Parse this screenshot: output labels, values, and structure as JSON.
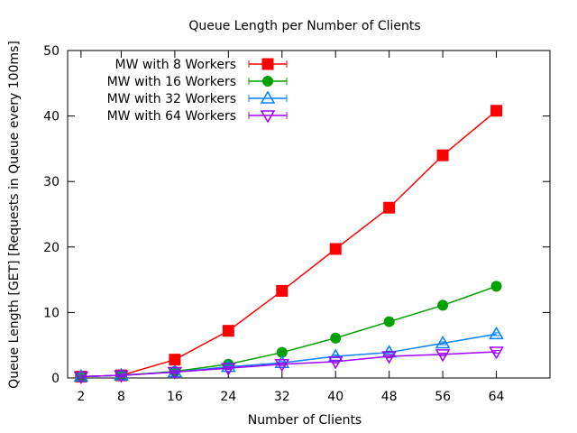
{
  "chart_data": {
    "type": "line",
    "title": "Queue Length per Number of Clients",
    "xlabel": "Number of Clients",
    "ylabel": "Queue Length [GET] [Requests in Queue every 100ms]",
    "x": [
      2,
      8,
      16,
      24,
      32,
      40,
      48,
      56,
      64
    ],
    "xticks": [
      2,
      8,
      16,
      24,
      32,
      40,
      48,
      56,
      64
    ],
    "xlim": [
      0,
      72
    ],
    "ylim": [
      0,
      50
    ],
    "yticks": [
      0,
      10,
      20,
      30,
      40,
      50
    ],
    "grid": false,
    "legend_position": "top-left",
    "series": [
      {
        "name": "MW with 8 Workers",
        "color": "#ff0000",
        "marker": "filled-square",
        "values": [
          0.2,
          0.4,
          2.8,
          7.2,
          13.3,
          19.7,
          26.0,
          34.0,
          40.8
        ]
      },
      {
        "name": "MW with 16 Workers",
        "color": "#00a000",
        "marker": "filled-circle",
        "values": [
          0.2,
          0.4,
          1.0,
          2.1,
          3.9,
          6.1,
          8.6,
          11.1,
          14.0
        ]
      },
      {
        "name": "MW with 32 Workers",
        "color": "#0080ff",
        "marker": "open-triangle-up",
        "values": [
          0.2,
          0.4,
          0.9,
          1.7,
          2.3,
          3.3,
          3.9,
          5.3,
          6.7
        ]
      },
      {
        "name": "MW with 64 Workers",
        "color": "#a000ff",
        "marker": "open-triangle-down",
        "values": [
          0.2,
          0.4,
          0.9,
          1.5,
          2.1,
          2.5,
          3.3,
          3.6,
          4.0
        ]
      }
    ]
  }
}
